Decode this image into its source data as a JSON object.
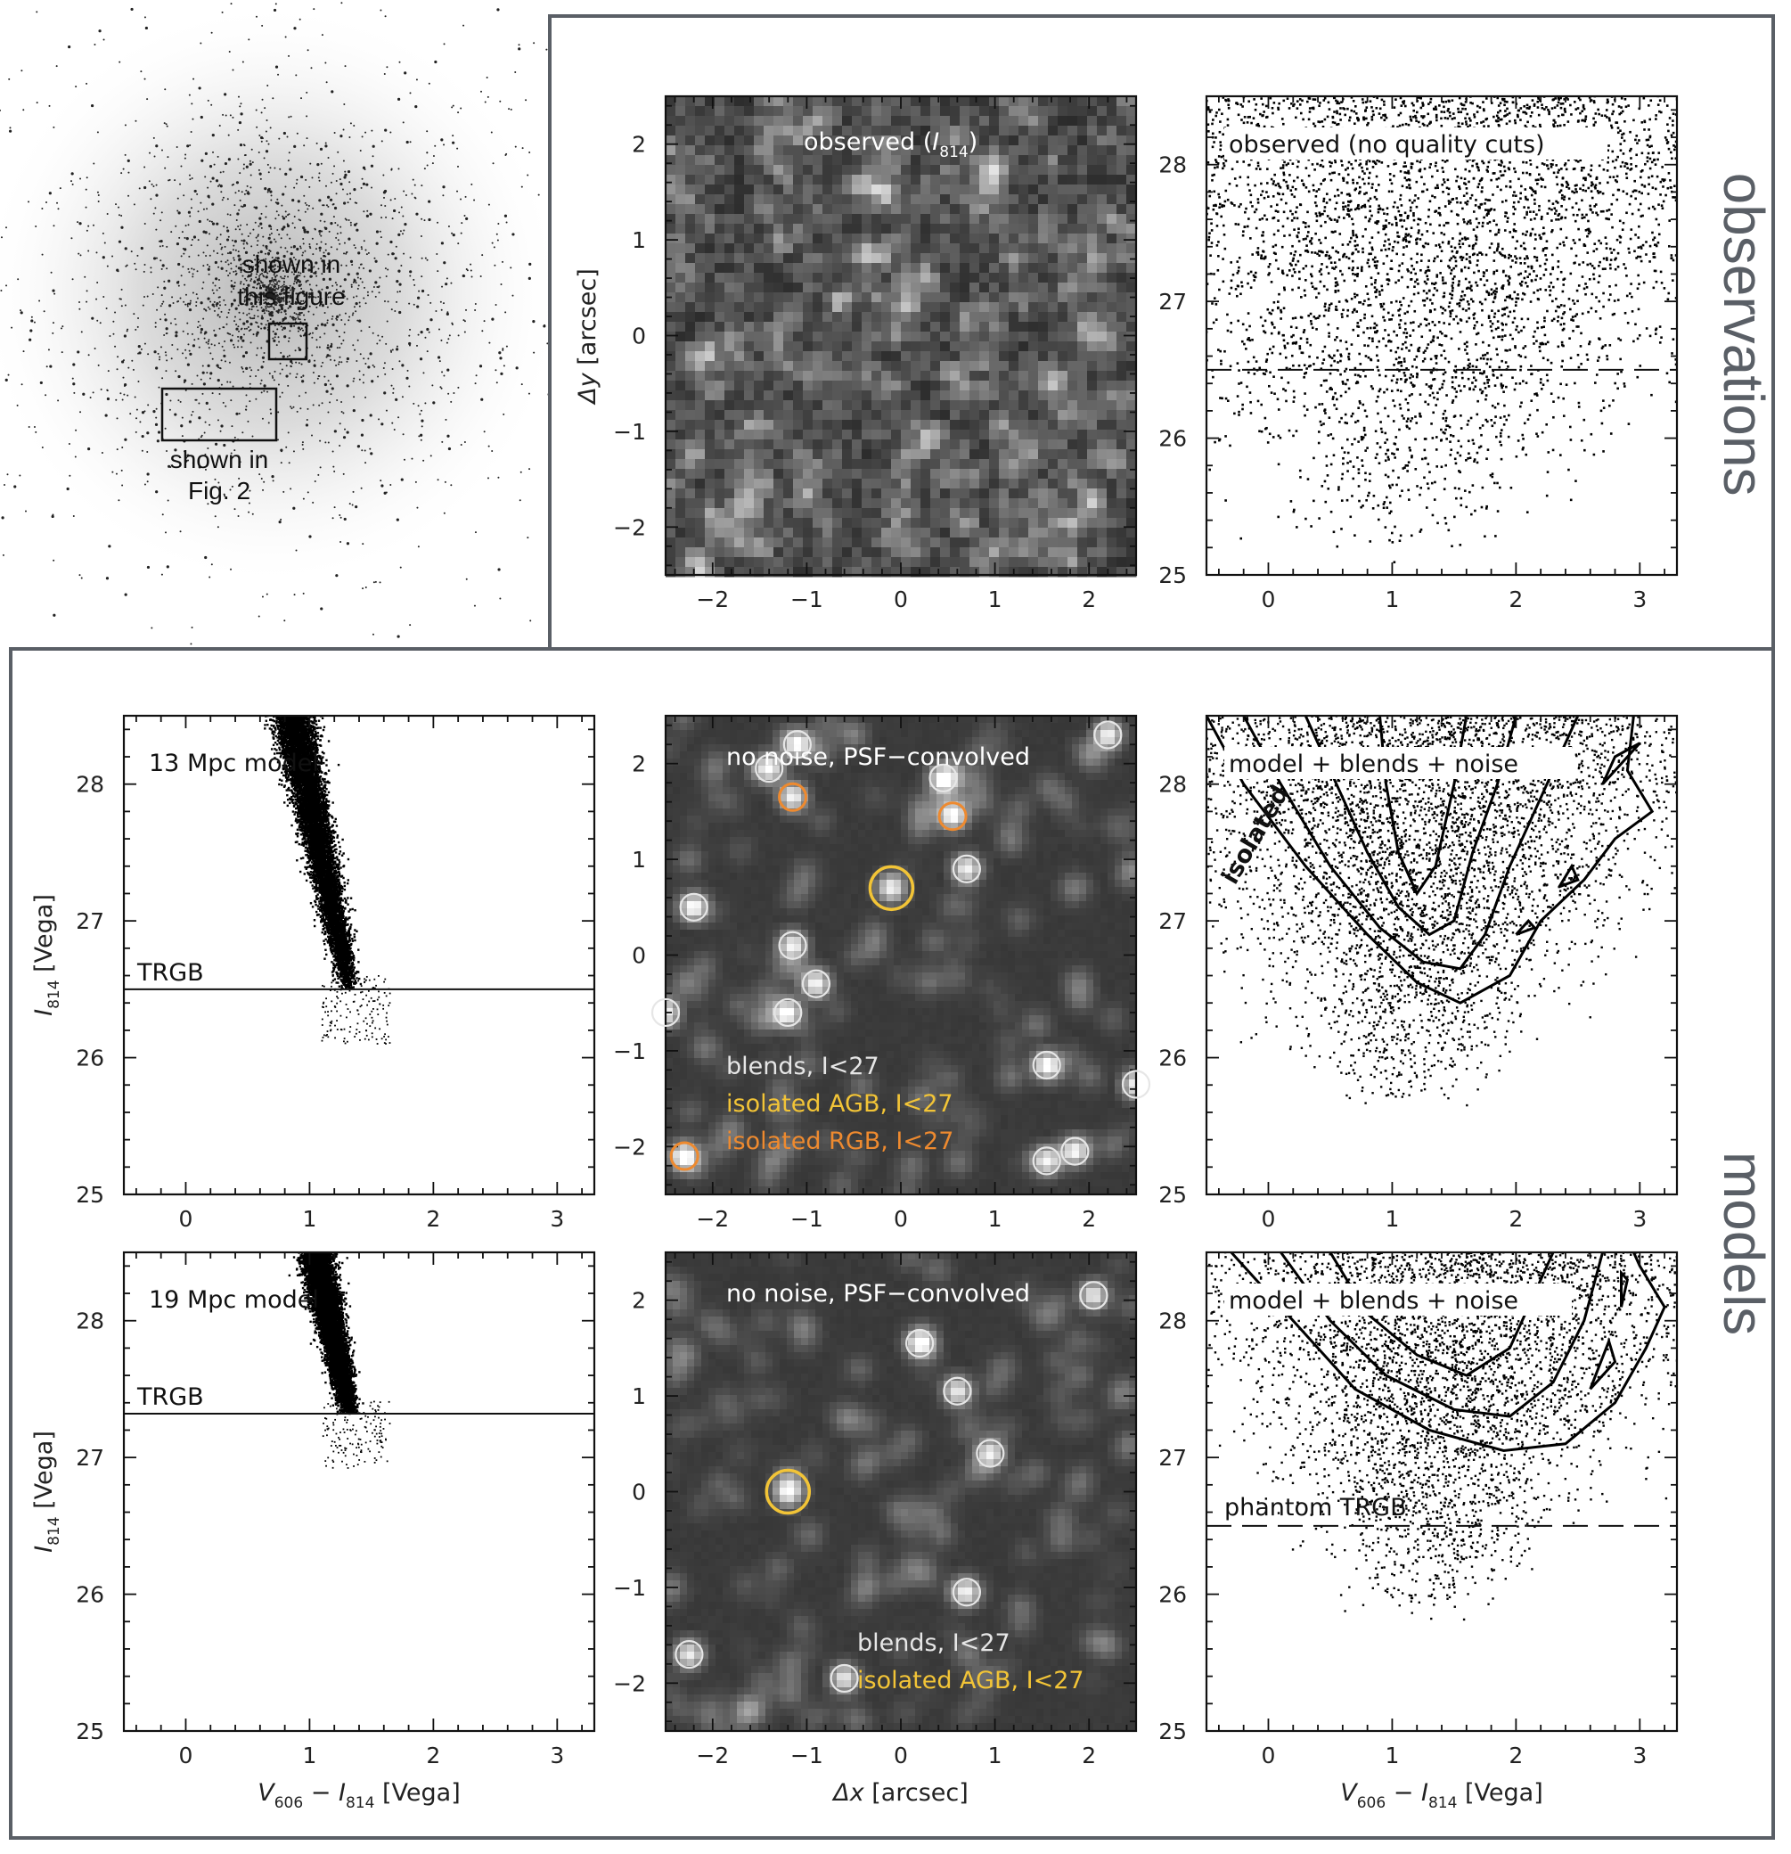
{
  "overview": {
    "box1_label_line1": "shown in",
    "box1_label_line2": "this figure",
    "box2_label_line1": "shown in",
    "box2_label_line2": "Fig. 2"
  },
  "sections": {
    "top": "observations",
    "bottom": "models"
  },
  "colors": {
    "frame": "#5a5f66",
    "blend_circle": "#e6e6e6",
    "agb_circle": "#f2c437",
    "rgb_circle": "#ee8a2f",
    "image_text": "#ffffff"
  },
  "chart_data": [
    {
      "id": "observed-image",
      "type": "heatmap",
      "label_main": "observed (",
      "label_sym": "I",
      "label_sub": "814",
      "label_close": ")",
      "xlim": [
        -2.5,
        2.5
      ],
      "ylim": [
        -2.5,
        2.5
      ],
      "xticks": [
        "−2",
        "−1",
        "0",
        "1",
        "2"
      ],
      "yticks": [
        "−2",
        "−1",
        "0",
        "1",
        "2"
      ],
      "ylabel_sym": "Δy",
      "ylabel_unit": "[arcsec]"
    },
    {
      "id": "observed-cmd",
      "type": "scatter",
      "label": "observed (no quality cuts)",
      "xlim": [
        -0.5,
        3.3
      ],
      "ylim": [
        28.5,
        25
      ],
      "xticks": [
        "0",
        "1",
        "2",
        "3"
      ],
      "yticks": [
        "25",
        "26",
        "27",
        "28"
      ],
      "dashed_line_y": 26.5
    },
    {
      "id": "model13-cmd",
      "type": "scatter",
      "label": "13 Mpc model",
      "trgb_label": "TRGB",
      "trgb_y": 26.5,
      "xlim": [
        -0.5,
        3.3
      ],
      "ylim": [
        28.5,
        25
      ],
      "xticks": [
        "0",
        "1",
        "2",
        "3"
      ],
      "yticks": [
        "25",
        "26",
        "27",
        "28"
      ],
      "ylabel_sym": "I",
      "ylabel_sub": "814",
      "ylabel_unit": "[Vega]"
    },
    {
      "id": "model13-image",
      "type": "heatmap",
      "label": "no noise, PSF−convolved",
      "legend_blends": "blends, I<27",
      "legend_agb": "isolated AGB, I<27",
      "legend_rgb": "isolated RGB, I<27",
      "xlim": [
        -2.5,
        2.5
      ],
      "ylim": [
        -2.5,
        2.5
      ],
      "xticks": [
        "−2",
        "−1",
        "0",
        "1",
        "2"
      ],
      "yticks": [
        "−2",
        "−1",
        "0",
        "1",
        "2"
      ],
      "blends": [
        [
          -1.1,
          2.2
        ],
        [
          -1.4,
          1.95
        ],
        [
          0.45,
          1.85
        ],
        [
          -2.2,
          0.5
        ],
        [
          -1.15,
          0.1
        ],
        [
          -0.9,
          -0.3
        ],
        [
          -1.2,
          -0.6
        ],
        [
          -2.5,
          -0.6
        ],
        [
          0.7,
          0.9
        ],
        [
          1.55,
          -1.15
        ],
        [
          2.5,
          -1.35
        ],
        [
          2.2,
          2.3
        ],
        [
          1.55,
          -2.15
        ],
        [
          1.85,
          -2.05
        ]
      ],
      "agb": [
        [
          -0.1,
          0.7
        ]
      ],
      "rgb": [
        [
          -1.15,
          1.65
        ],
        [
          0.55,
          1.45
        ],
        [
          -2.3,
          -2.1
        ]
      ]
    },
    {
      "id": "model13-noisy-cmd",
      "type": "scatter",
      "label": "model + blends + noise",
      "contour_label": "isolated",
      "xlim": [
        -0.5,
        3.3
      ],
      "ylim": [
        28.5,
        25
      ],
      "xticks": [
        "0",
        "1",
        "2",
        "3"
      ],
      "yticks": [
        "25",
        "26",
        "27",
        "28"
      ]
    },
    {
      "id": "model19-cmd",
      "type": "scatter",
      "label": "19 Mpc model",
      "trgb_label": "TRGB",
      "trgb_y": 27.32,
      "xlim": [
        -0.5,
        3.3
      ],
      "ylim": [
        28.5,
        25
      ],
      "xticks": [
        "0",
        "1",
        "2",
        "3"
      ],
      "yticks": [
        "25",
        "26",
        "27",
        "28"
      ],
      "ylabel_sym": "I",
      "ylabel_sub": "814",
      "ylabel_unit": "[Vega]",
      "xlabel_v": "V",
      "xlabel_vsub": "606",
      "xlabel_minus": " − ",
      "xlabel_i": "I",
      "xlabel_isub": "814",
      "xlabel_unit": " [Vega]"
    },
    {
      "id": "model19-image",
      "type": "heatmap",
      "label": "no noise, PSF−convolved",
      "legend_blends": "blends, I<27",
      "legend_agb": "isolated AGB, I<27",
      "xlim": [
        -2.5,
        2.5
      ],
      "ylim": [
        -2.5,
        2.5
      ],
      "xticks": [
        "−2",
        "−1",
        "0",
        "1",
        "2"
      ],
      "yticks": [
        "−2",
        "−1",
        "0",
        "1",
        "2"
      ],
      "xlabel_sym": "Δx",
      "xlabel_unit": "[arcsec]",
      "blends": [
        [
          2.05,
          2.05
        ],
        [
          0.2,
          1.55
        ],
        [
          0.6,
          1.05
        ],
        [
          0.95,
          0.4
        ],
        [
          0.7,
          -1.05
        ],
        [
          -2.25,
          -1.7
        ],
        [
          -0.6,
          -1.95
        ]
      ],
      "agb": [
        [
          -1.2,
          0.0
        ]
      ],
      "rgb": []
    },
    {
      "id": "model19-noisy-cmd",
      "type": "scatter",
      "label": "model + blends + noise",
      "phantom_label": "phantom TRGB",
      "dashed_line_y": 26.5,
      "xlim": [
        -0.5,
        3.3
      ],
      "ylim": [
        28.5,
        25
      ],
      "xticks": [
        "0",
        "1",
        "2",
        "3"
      ],
      "yticks": [
        "25",
        "26",
        "27",
        "28"
      ],
      "xlabel_v": "V",
      "xlabel_vsub": "606",
      "xlabel_minus": " − ",
      "xlabel_i": "I",
      "xlabel_isub": "814",
      "xlabel_unit": " [Vega]"
    }
  ]
}
